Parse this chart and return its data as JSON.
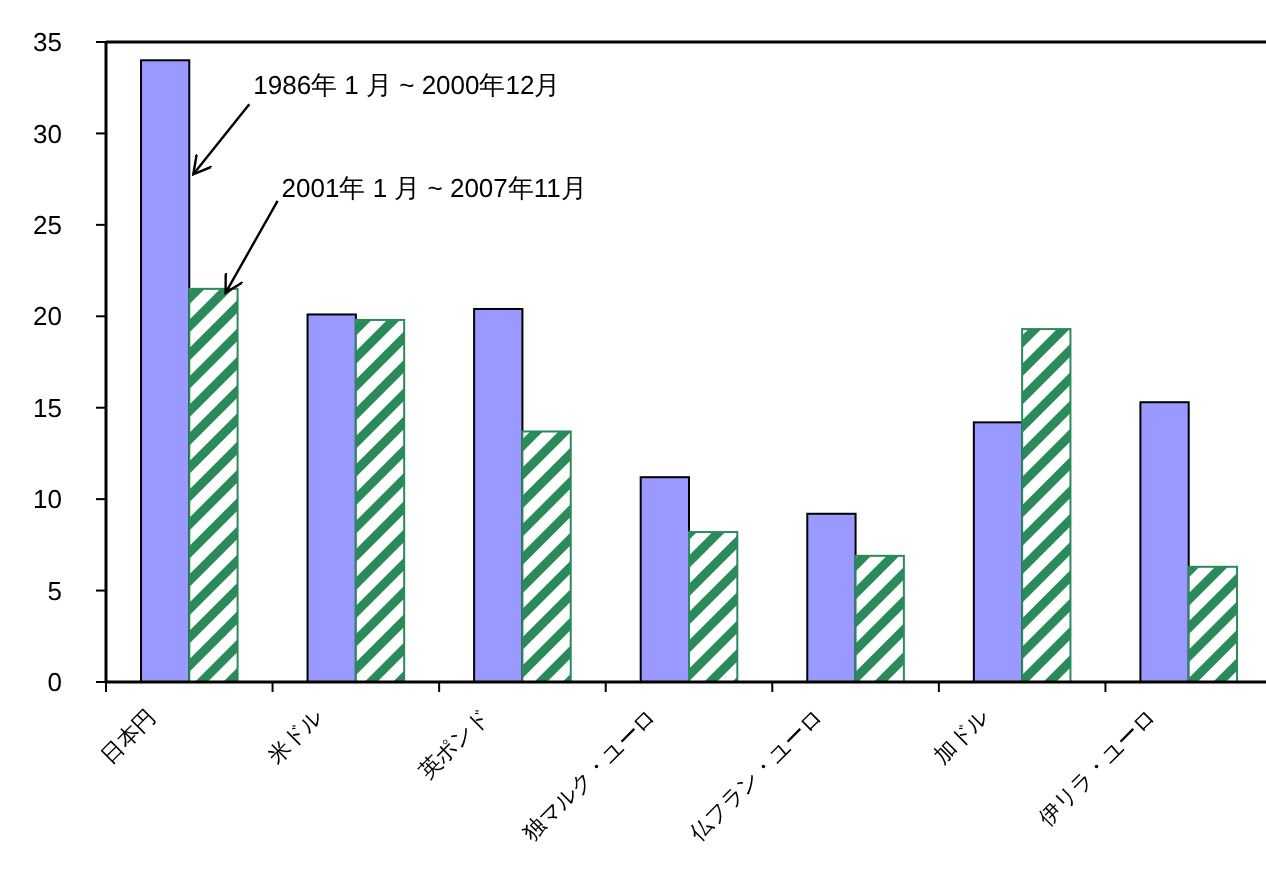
{
  "chart_data": {
    "type": "bar",
    "categories": [
      "日本円",
      "米ドル",
      "英ポンド",
      "独マルク・ユーロ",
      "仏フラン・ユーロ",
      "加ドル",
      "伊リラ・ユーロ"
    ],
    "series": [
      {
        "name": "1986年 1 月 ~ 2000年12月",
        "color": "#9999ff",
        "values": [
          34.0,
          20.1,
          20.4,
          11.2,
          9.2,
          14.2,
          15.3
        ]
      },
      {
        "name": "2001年 1 月 ~ 2007年11月",
        "color": "#2a8a5a",
        "values": [
          21.5,
          19.8,
          13.7,
          8.2,
          6.9,
          19.3,
          6.3
        ]
      }
    ],
    "ylim": [
      0,
      35
    ],
    "yticks": [
      0,
      5,
      10,
      15,
      20,
      25,
      30,
      35
    ],
    "grid": false,
    "legend": false
  }
}
